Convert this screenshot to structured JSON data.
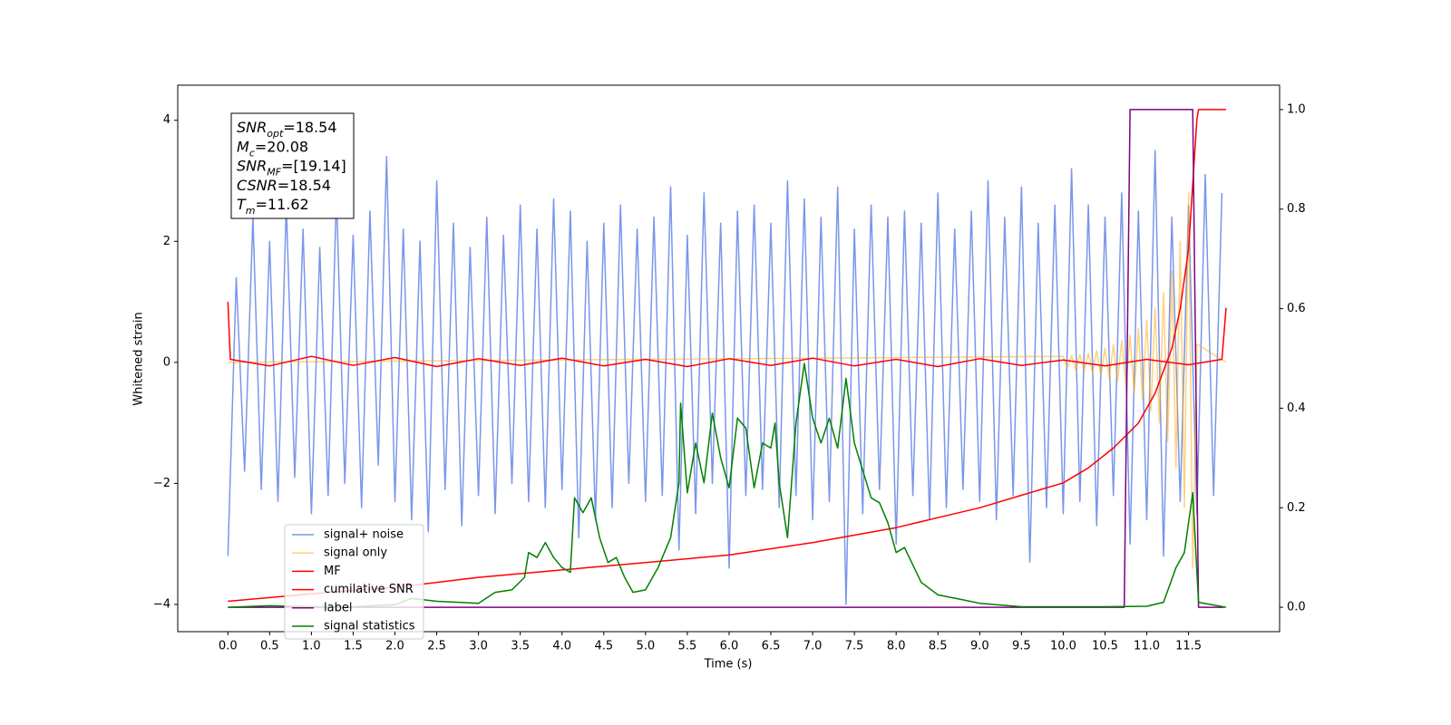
{
  "chart_data": {
    "type": "line",
    "xlabel": "Time (s)",
    "ylabel": "Whitened strain",
    "xlim": [
      -0.6,
      12.59
    ],
    "ylim": [
      -4.45,
      4.58
    ],
    "y2lim": [
      -0.049,
      1.049
    ],
    "xticks": [
      {
        "value": 0,
        "label": "0.0"
      },
      0.5,
      {
        "value": 1,
        "label": "1.0"
      },
      1.5,
      {
        "value": 2,
        "label": "2.0"
      },
      2.5,
      {
        "value": 3,
        "label": "3.0"
      },
      3.5,
      {
        "value": 4,
        "label": "4.0"
      },
      4.5,
      {
        "value": 5,
        "label": "5.0"
      },
      5.5,
      {
        "value": 6,
        "label": "6.0"
      },
      6.5,
      {
        "value": 7,
        "label": "7.0"
      },
      7.5,
      {
        "value": 8,
        "label": "8.0"
      },
      8.5,
      {
        "value": 9,
        "label": "9.0"
      },
      9.5,
      {
        "value": 10,
        "label": "10.0"
      },
      10.5,
      {
        "value": 11,
        "label": "11.0"
      },
      11.5
    ],
    "yticks": [
      {
        "value": -4,
        "label": "−4"
      },
      {
        "value": -2,
        "label": "−2"
      },
      0,
      2,
      4
    ],
    "y2ticks": [
      {
        "value": 0,
        "label": "0.0"
      },
      0.2,
      0.4,
      0.6,
      0.8,
      {
        "value": 1,
        "label": "1.0"
      }
    ],
    "annotations": [
      {
        "main": "SNR",
        "sub": "opt",
        "rest": "=18.54"
      },
      {
        "main": "M",
        "sub": "c",
        "rest": "=20.08"
      },
      {
        "main": "SNR",
        "sub": "MF",
        "rest": "=[19.14]"
      },
      {
        "main": "CSNR",
        "sub": null,
        "rest": "=18.54"
      },
      {
        "main": "T",
        "sub": "m",
        "rest": "=11.62"
      }
    ],
    "series": [
      {
        "name": "signal+ noise",
        "color": "#4169e1",
        "opacity": 0.7,
        "x": [
          0,
          0.1,
          0.2,
          0.3,
          0.4,
          0.5,
          0.6,
          0.7,
          0.8,
          0.9,
          1,
          1.1,
          1.2,
          1.3,
          1.4,
          1.5,
          1.6,
          1.7,
          1.8,
          1.9,
          2,
          2.1,
          2.2,
          2.3,
          2.4,
          2.5,
          2.6,
          2.7,
          2.8,
          2.9,
          3,
          3.1,
          3.2,
          3.3,
          3.4,
          3.5,
          3.6,
          3.7,
          3.8,
          3.9,
          4,
          4.1,
          4.2,
          4.3,
          4.4,
          4.5,
          4.6,
          4.7,
          4.8,
          4.9,
          5,
          5.1,
          5.2,
          5.3,
          5.4,
          5.5,
          5.6,
          5.7,
          5.8,
          5.9,
          6,
          6.1,
          6.2,
          6.3,
          6.4,
          6.5,
          6.6,
          6.7,
          6.8,
          6.9,
          7,
          7.1,
          7.2,
          7.3,
          7.4,
          7.5,
          7.6,
          7.7,
          7.8,
          7.9,
          8,
          8.1,
          8.2,
          8.3,
          8.4,
          8.5,
          8.6,
          8.7,
          8.8,
          8.9,
          9,
          9.1,
          9.2,
          9.3,
          9.4,
          9.5,
          9.6,
          9.7,
          9.8,
          9.9,
          10,
          10.1,
          10.2,
          10.3,
          10.4,
          10.5,
          10.6,
          10.7,
          10.8,
          10.9,
          11,
          11.1,
          11.2,
          11.3,
          11.4,
          11.5,
          11.6,
          11.7,
          11.8,
          11.9
        ],
        "values": [
          -3.2,
          1.4,
          -1.8,
          2.4,
          -2.1,
          2.0,
          -2.3,
          2.6,
          -1.9,
          2.2,
          -2.5,
          1.9,
          -2.2,
          2.8,
          -2.0,
          2.1,
          -2.4,
          2.5,
          -1.7,
          3.4,
          -2.3,
          2.2,
          -2.6,
          2.0,
          -2.8,
          3.0,
          -2.1,
          2.3,
          -2.7,
          1.9,
          -2.2,
          2.4,
          -2.5,
          2.1,
          -2.0,
          2.6,
          -2.3,
          2.2,
          -2.4,
          2.7,
          -2.1,
          2.5,
          -2.9,
          2.0,
          -2.6,
          2.3,
          -2.4,
          2.6,
          -2.0,
          2.2,
          -2.3,
          2.4,
          -2.2,
          2.9,
          -3.1,
          2.1,
          -2.5,
          2.8,
          -2.0,
          2.3,
          -3.4,
          2.5,
          -2.2,
          2.6,
          -2.1,
          2.3,
          -2.4,
          3.0,
          -2.2,
          2.7,
          -2.6,
          2.4,
          -2.3,
          2.9,
          -4.0,
          2.2,
          -2.5,
          2.6,
          -2.1,
          2.4,
          -3.0,
          2.5,
          -2.2,
          2.3,
          -2.6,
          2.8,
          -2.4,
          2.2,
          -2.1,
          2.5,
          -2.3,
          3.0,
          -2.6,
          2.4,
          -2.2,
          2.9,
          -3.3,
          2.3,
          -2.4,
          2.6,
          -2.5,
          3.2,
          -2.3,
          2.6,
          -2.7,
          2.4,
          -2.2,
          2.8,
          -3.0,
          2.5,
          -2.6,
          3.5,
          -3.2,
          2.4,
          -2.3,
          2.6,
          -2.5,
          3.1,
          -2.2,
          2.8
        ]
      },
      {
        "name": "signal only",
        "color": "#ffa500",
        "opacity": 0.5,
        "x": [
          0,
          10,
          10.05,
          10.1,
          10.15,
          10.2,
          10.25,
          10.3,
          10.35,
          10.4,
          10.45,
          10.5,
          10.55,
          10.6,
          10.65,
          10.7,
          10.75,
          10.8,
          10.85,
          10.9,
          10.95,
          11,
          11.05,
          11.1,
          11.15,
          11.2,
          11.25,
          11.3,
          11.35,
          11.4,
          11.45,
          11.5,
          11.55,
          11.6,
          11.95
        ],
        "values": [
          0,
          0.1,
          -0.1,
          0.11,
          -0.12,
          0.13,
          -0.14,
          0.15,
          -0.17,
          0.19,
          -0.21,
          0.23,
          -0.26,
          0.29,
          -0.32,
          0.36,
          -0.4,
          0.45,
          -0.5,
          0.56,
          -0.63,
          0.7,
          -0.8,
          0.9,
          -1.0,
          1.15,
          -1.3,
          1.5,
          -1.75,
          2.0,
          -2.4,
          2.8,
          -3.4,
          0.3,
          0
        ]
      },
      {
        "name": "MF",
        "color": "#ff0000",
        "opacity": 1,
        "x": [
          0,
          0.03,
          0.5,
          1,
          1.5,
          2,
          2.5,
          3,
          3.5,
          4,
          4.5,
          5,
          5.5,
          6,
          6.5,
          7,
          7.5,
          8,
          8.5,
          9,
          9.5,
          10,
          10.5,
          11,
          11.5,
          11.9,
          11.95
        ],
        "values": [
          1.0,
          0.05,
          -0.06,
          0.1,
          -0.05,
          0.08,
          -0.07,
          0.06,
          -0.05,
          0.07,
          -0.06,
          0.05,
          -0.07,
          0.06,
          -0.05,
          0.07,
          -0.06,
          0.05,
          -0.07,
          0.06,
          -0.05,
          0.04,
          -0.06,
          0.05,
          -0.04,
          0.05,
          0.9
        ]
      },
      {
        "name": "cumilative SNR",
        "color": "#ff0000",
        "opacity": 1,
        "axis": "y2",
        "x": [
          0,
          1,
          2,
          3,
          4,
          5,
          6,
          7,
          7.5,
          8,
          8.5,
          9,
          9.5,
          10,
          10.3,
          10.6,
          10.9,
          11.1,
          11.3,
          11.4,
          11.5,
          11.55,
          11.6,
          11.62,
          11.95
        ],
        "values": [
          0.012,
          0.027,
          0.04,
          0.06,
          0.075,
          0.09,
          0.105,
          0.13,
          0.145,
          0.16,
          0.18,
          0.2,
          0.225,
          0.25,
          0.28,
          0.32,
          0.37,
          0.43,
          0.52,
          0.6,
          0.72,
          0.85,
          0.98,
          1.0,
          1.0
        ]
      },
      {
        "name": "label",
        "color": "#800080",
        "opacity": 1,
        "axis": "y2",
        "x": [
          0,
          10.73,
          10.8,
          11.55,
          11.62,
          11.92
        ],
        "values": [
          0,
          0,
          1,
          1,
          0,
          0
        ]
      },
      {
        "name": "signal statistics",
        "color": "#008000",
        "opacity": 1,
        "axis": "y2",
        "x": [
          0,
          0.5,
          1,
          1.5,
          2,
          2.2,
          2.5,
          3,
          3.2,
          3.4,
          3.55,
          3.6,
          3.7,
          3.8,
          3.9,
          4,
          4.1,
          4.15,
          4.25,
          4.35,
          4.45,
          4.55,
          4.65,
          4.75,
          4.85,
          5,
          5.15,
          5.3,
          5.4,
          5.42,
          5.5,
          5.6,
          5.7,
          5.8,
          5.9,
          6,
          6.1,
          6.2,
          6.3,
          6.4,
          6.5,
          6.55,
          6.6,
          6.7,
          6.8,
          6.9,
          7,
          7.1,
          7.2,
          7.3,
          7.4,
          7.5,
          7.7,
          7.8,
          7.9,
          8,
          8.1,
          8.3,
          8.5,
          8.8,
          9,
          9.5,
          10.5,
          11,
          11.2,
          11.35,
          11.45,
          11.55,
          11.62,
          11.95
        ],
        "values": [
          0,
          0.003,
          0.001,
          0.001,
          0.005,
          0.018,
          0.012,
          0.008,
          0.03,
          0.035,
          0.06,
          0.11,
          0.1,
          0.13,
          0.1,
          0.08,
          0.07,
          0.22,
          0.19,
          0.22,
          0.14,
          0.09,
          0.1,
          0.06,
          0.03,
          0.035,
          0.08,
          0.14,
          0.25,
          0.41,
          0.23,
          0.33,
          0.25,
          0.39,
          0.3,
          0.24,
          0.38,
          0.36,
          0.24,
          0.33,
          0.32,
          0.37,
          0.25,
          0.14,
          0.37,
          0.49,
          0.38,
          0.33,
          0.38,
          0.32,
          0.46,
          0.33,
          0.22,
          0.21,
          0.17,
          0.11,
          0.12,
          0.05,
          0.025,
          0.015,
          0.008,
          0.001,
          0.001,
          0.002,
          0.01,
          0.08,
          0.11,
          0.23,
          0.01,
          0
        ]
      }
    ]
  }
}
